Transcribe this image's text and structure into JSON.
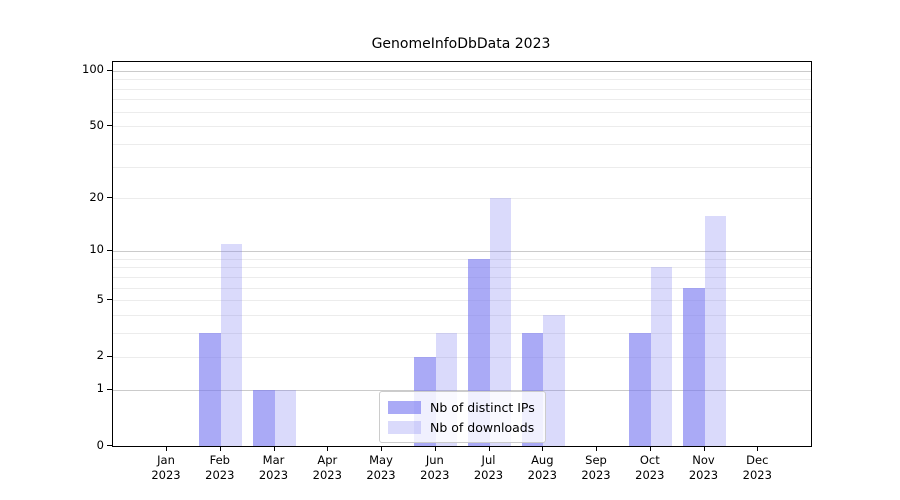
{
  "chart_data": {
    "type": "bar",
    "title": "GenomeInfoDbData 2023",
    "year": "2023",
    "categories": [
      "Jan",
      "Feb",
      "Mar",
      "Apr",
      "May",
      "Jun",
      "Jul",
      "Aug",
      "Sep",
      "Oct",
      "Nov",
      "Dec"
    ],
    "series": [
      {
        "name": "Nb of distinct IPs",
        "color": "rgba(118,118,240,0.62)",
        "color_hex": "#a6a6f4",
        "values": [
          0,
          3,
          1,
          0,
          0,
          2,
          9,
          3,
          0,
          3,
          6,
          0
        ]
      },
      {
        "name": "Nb of downloads",
        "color": "rgba(118,118,240,0.27)",
        "color_hex": "#d9d9fa",
        "values": [
          0,
          11,
          1,
          0,
          0,
          3,
          20,
          4,
          0,
          8,
          16,
          0
        ]
      }
    ],
    "xlabel": "",
    "ylabel": "",
    "yscale": "log1p",
    "yticks": [
      0,
      1,
      2,
      5,
      10,
      20,
      50,
      100
    ],
    "ylim": [
      0,
      112
    ],
    "grid": true,
    "legend_position": "lower center"
  },
  "colors": {
    "grid_major": "#cbcbcb",
    "grid_minor": "#ececec",
    "spine": "#000000",
    "legend_border": "#cccccc",
    "background": "#ffffff"
  }
}
